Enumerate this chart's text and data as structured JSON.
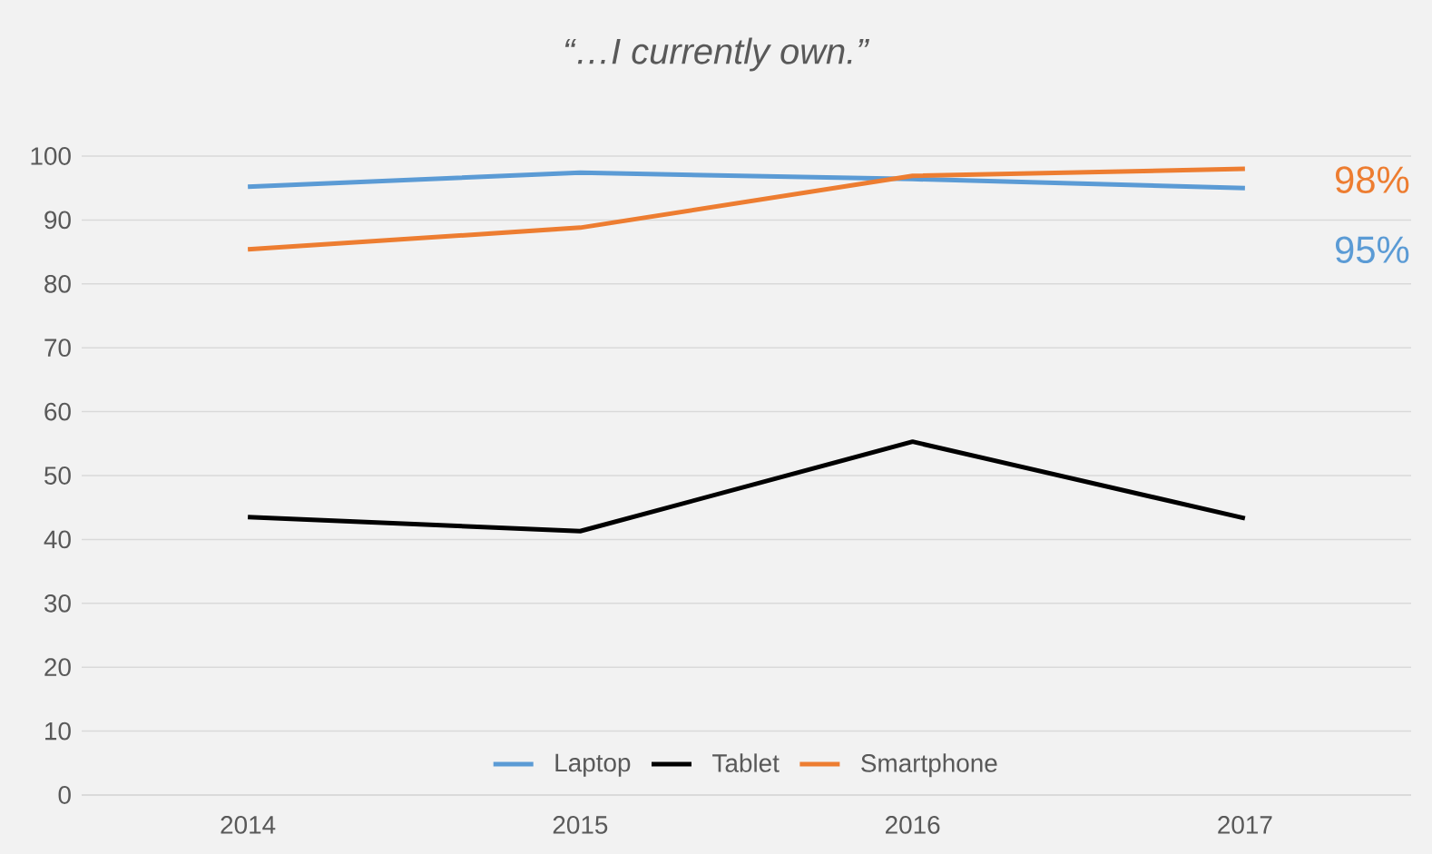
{
  "chart_data": {
    "type": "line",
    "title": "*“…I currently own.”*",
    "categories": [
      "2014",
      "2015",
      "2016",
      "2017"
    ],
    "series": [
      {
        "name": "Laptop",
        "color": "#5b9bd5",
        "values": [
          95.2,
          97.4,
          96.4,
          95.0
        ]
      },
      {
        "name": "Tablet",
        "color": "#000000",
        "values": [
          43.5,
          41.3,
          55.3,
          43.3
        ]
      },
      {
        "name": "Smartphone",
        "color": "#ed7d31",
        "values": [
          85.4,
          88.8,
          96.9,
          98.0
        ]
      }
    ],
    "ylim": [
      0,
      100
    ],
    "yticks": [
      0,
      10,
      20,
      30,
      40,
      50,
      60,
      70,
      80,
      90,
      100
    ],
    "grid": "y",
    "legend": "bottom",
    "marker": "none",
    "line_style": "solid",
    "annotations": [
      {
        "text": "98%",
        "x": "2017",
        "y": 98
      },
      {
        "text": "95%",
        "x": "2017",
        "y": 95
      }
    ]
  }
}
